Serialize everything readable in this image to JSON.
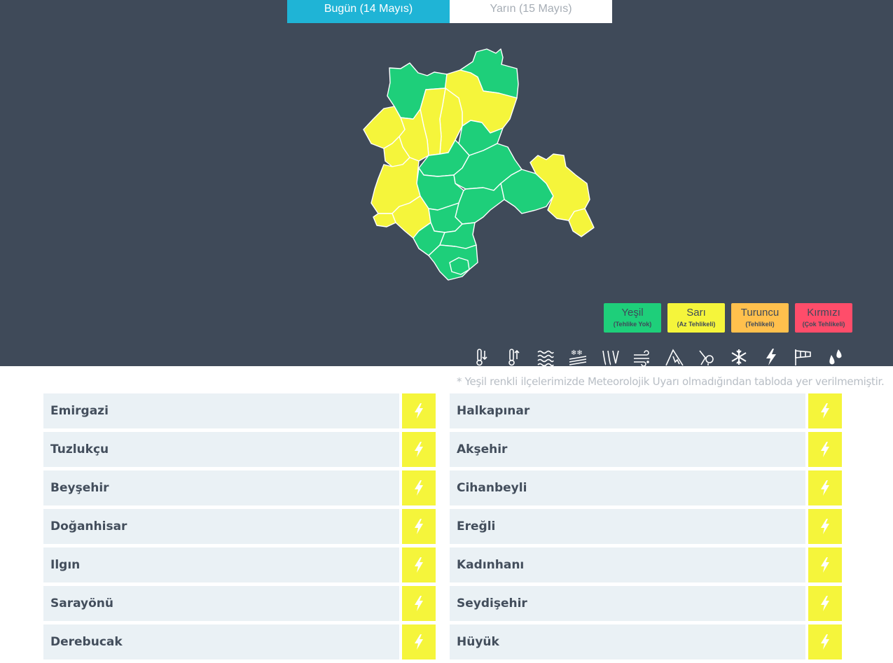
{
  "tabs": [
    {
      "label": "Bugün (14 Mayıs)",
      "active": true
    },
    {
      "label": "Yarın (15 Mayıs)",
      "active": false
    }
  ],
  "colors": {
    "background": "#3f4a59",
    "green": "#1ecf7a",
    "yellow": "#f5f53b",
    "orange": "#ffc04d",
    "red": "#ff4d6a",
    "tab_active": "#1fb4d6",
    "row_bg": "#eaf1f5"
  },
  "legend": [
    {
      "name": "Yeşil",
      "desc": "(Tehlike Yok)",
      "color": "#1ecf7a"
    },
    {
      "name": "Sarı",
      "desc": "(Az Tehlikeli)",
      "color": "#f5f53b"
    },
    {
      "name": "Turuncu",
      "desc": "(Tehlikeli)",
      "color": "#ffc04d"
    },
    {
      "name": "Kırmızı",
      "desc": "(Çok Tehlikeli)",
      "color": "#ff4d6a"
    }
  ],
  "hazard_icons": [
    "cold-icon",
    "heat-icon",
    "fog-icon",
    "avalanche-snow-icon",
    "rain-icon",
    "wind-icon",
    "mountain-avalanche-icon",
    "hail-icon",
    "snowflake-icon",
    "lightning-icon",
    "windsock-icon",
    "drops-icon"
  ],
  "note": "* Yeşil renkli ilçelerimizde Meteorolojik Uyarı olmadığından tabloda yer verilmemiştir.",
  "districts_left": [
    {
      "name": "Emirgazi",
      "warning": "lightning-icon"
    },
    {
      "name": "Tuzlukçu",
      "warning": "lightning-icon"
    },
    {
      "name": "Beyşehir",
      "warning": "lightning-icon"
    },
    {
      "name": "Doğanhisar",
      "warning": "lightning-icon"
    },
    {
      "name": "Ilgın",
      "warning": "lightning-icon"
    },
    {
      "name": "Sarayönü",
      "warning": "lightning-icon"
    },
    {
      "name": "Derebucak",
      "warning": "lightning-icon"
    }
  ],
  "districts_right": [
    {
      "name": "Halkapınar",
      "warning": "lightning-icon"
    },
    {
      "name": "Akşehir",
      "warning": "lightning-icon"
    },
    {
      "name": "Cihanbeyli",
      "warning": "lightning-icon"
    },
    {
      "name": "Ereğli",
      "warning": "lightning-icon"
    },
    {
      "name": "Kadınhanı",
      "warning": "lightning-icon"
    },
    {
      "name": "Seydişehir",
      "warning": "lightning-icon"
    },
    {
      "name": "Hüyük",
      "warning": "lightning-icon"
    }
  ]
}
